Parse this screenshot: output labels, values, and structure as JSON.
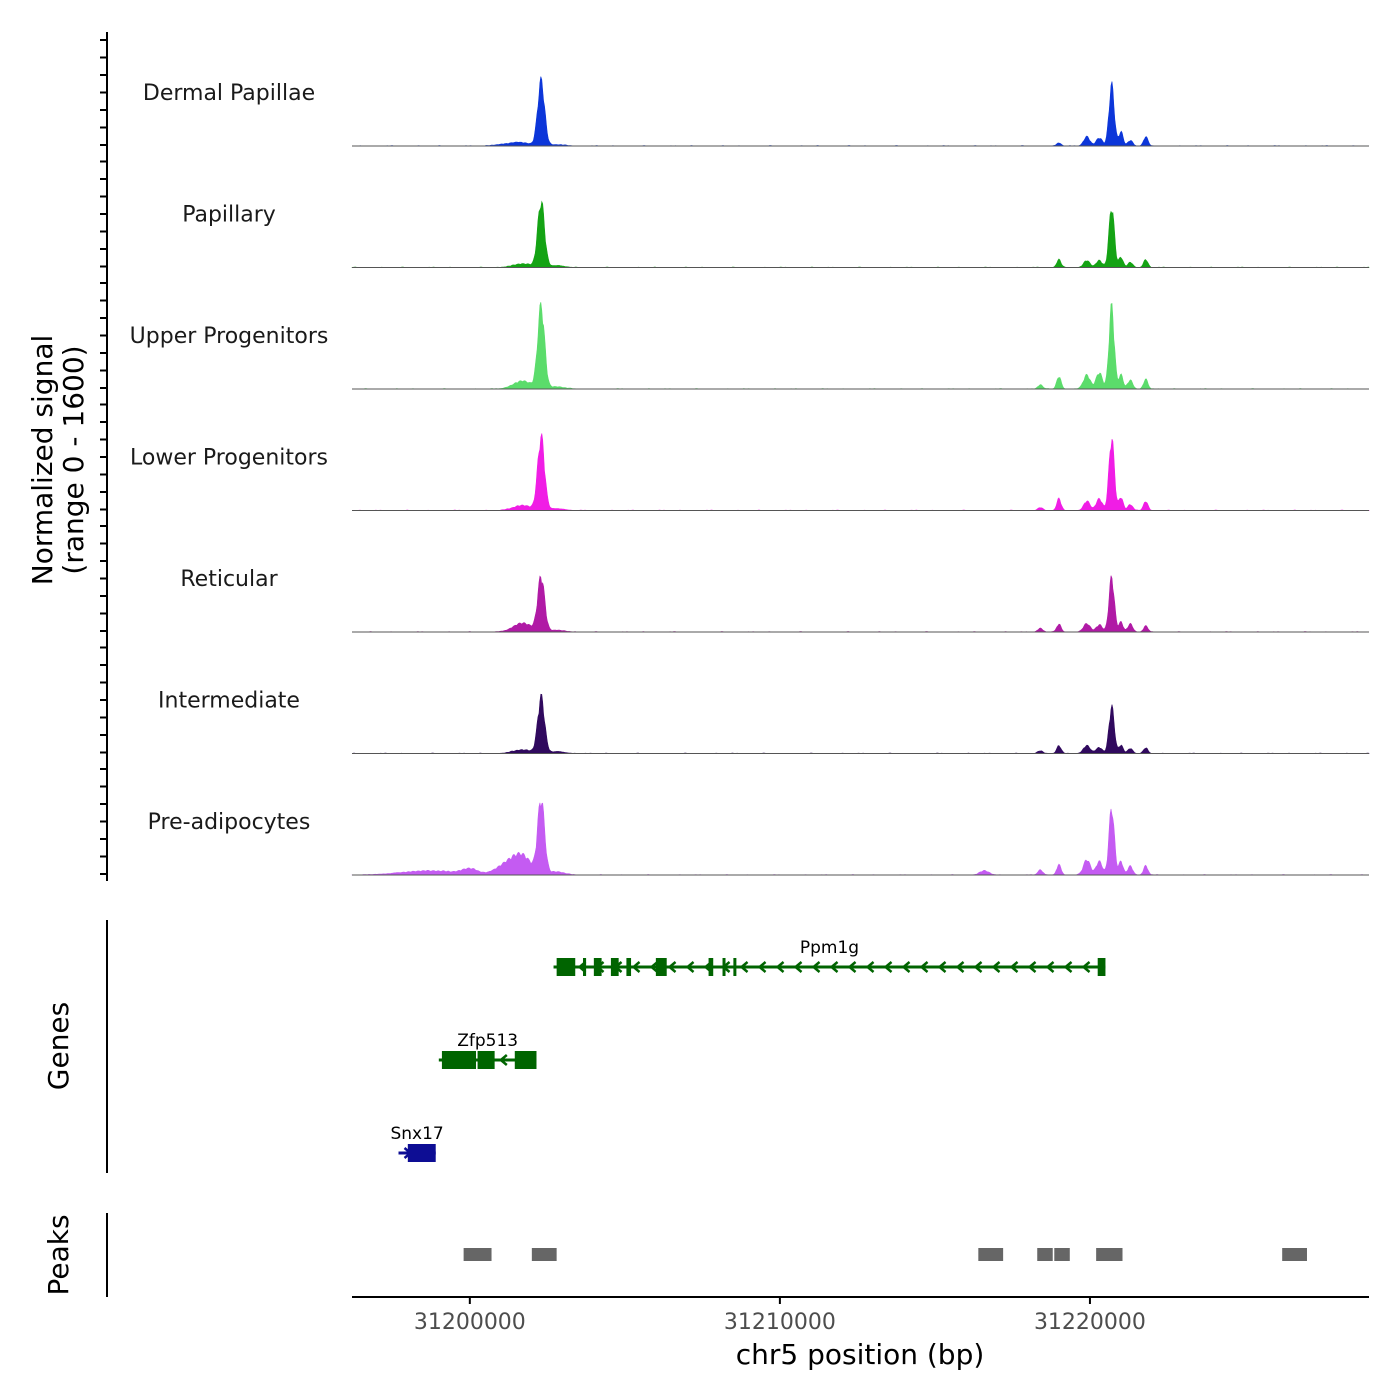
{
  "chart_data": {
    "type": "area",
    "title": "",
    "chromosome": "chr5",
    "xlabel": "chr5 position (bp)",
    "ylabel_line1": "Normalized signal",
    "ylabel_line2": "(range 0 - 1600)",
    "xlim": [
      31196200,
      31229000
    ],
    "ylim": [
      0,
      1600
    ],
    "x_ticks": [
      31200000,
      31210000,
      31220000
    ],
    "x_tick_labels": [
      "31200000",
      "31210000",
      "31220000"
    ],
    "track_titles": {
      "genes": "Genes",
      "peaks": "Peaks"
    },
    "series": [
      {
        "name": "Dermal Papillae",
        "color": "#0c36d9",
        "peaks": [
          [
            31201200,
            40,
            350
          ],
          [
            31201700,
            60,
            300
          ],
          [
            31202300,
            1380,
            110
          ],
          [
            31202800,
            30,
            250
          ],
          [
            31219000,
            70,
            70
          ],
          [
            31219900,
            200,
            100
          ],
          [
            31220300,
            170,
            100
          ],
          [
            31220700,
            1300,
            85
          ],
          [
            31221000,
            300,
            70
          ],
          [
            31221300,
            120,
            80
          ],
          [
            31221800,
            200,
            70
          ]
        ]
      },
      {
        "name": "Papillary",
        "color": "#14a314",
        "peaks": [
          [
            31201700,
            80,
            300
          ],
          [
            31202300,
            1400,
            110
          ],
          [
            31202800,
            40,
            250
          ],
          [
            31219000,
            170,
            70
          ],
          [
            31219900,
            150,
            100
          ],
          [
            31220300,
            150,
            100
          ],
          [
            31220700,
            1300,
            85
          ],
          [
            31221000,
            220,
            70
          ],
          [
            31221300,
            110,
            80
          ],
          [
            31221800,
            170,
            70
          ]
        ]
      },
      {
        "name": "Upper Progenitors",
        "color": "#5bdc6b",
        "peaks": [
          [
            31201700,
            170,
            300
          ],
          [
            31202300,
            1750,
            110
          ],
          [
            31202800,
            50,
            250
          ],
          [
            31218400,
            90,
            80
          ],
          [
            31219000,
            270,
            70
          ],
          [
            31219900,
            300,
            110
          ],
          [
            31220300,
            350,
            100
          ],
          [
            31220700,
            1750,
            85
          ],
          [
            31221000,
            300,
            70
          ],
          [
            31221300,
            190,
            80
          ],
          [
            31221800,
            210,
            70
          ]
        ]
      },
      {
        "name": "Lower Progenitors",
        "color": "#f01de5",
        "peaks": [
          [
            31201700,
            110,
            300
          ],
          [
            31202300,
            1560,
            110
          ],
          [
            31202800,
            40,
            250
          ],
          [
            31218400,
            60,
            80
          ],
          [
            31219000,
            250,
            70
          ],
          [
            31219900,
            200,
            100
          ],
          [
            31220300,
            250,
            100
          ],
          [
            31220700,
            1560,
            85
          ],
          [
            31221000,
            280,
            70
          ],
          [
            31221300,
            130,
            80
          ],
          [
            31221800,
            200,
            70
          ]
        ]
      },
      {
        "name": "Reticular",
        "color": "#b01aa5",
        "peaks": [
          [
            31201700,
            190,
            300
          ],
          [
            31202300,
            1170,
            110
          ],
          [
            31202800,
            40,
            250
          ],
          [
            31218400,
            80,
            80
          ],
          [
            31219000,
            170,
            70
          ],
          [
            31219900,
            180,
            110
          ],
          [
            31220300,
            150,
            100
          ],
          [
            31220700,
            1170,
            85
          ],
          [
            31221000,
            210,
            70
          ],
          [
            31221300,
            170,
            80
          ],
          [
            31221800,
            130,
            70
          ]
        ]
      },
      {
        "name": "Intermediate",
        "color": "#30095e",
        "peaks": [
          [
            31201700,
            80,
            300
          ],
          [
            31202300,
            1190,
            110
          ],
          [
            31202800,
            40,
            250
          ],
          [
            31218400,
            60,
            80
          ],
          [
            31219000,
            170,
            70
          ],
          [
            31219900,
            170,
            110
          ],
          [
            31220300,
            130,
            100
          ],
          [
            31220700,
            1000,
            85
          ],
          [
            31221000,
            180,
            70
          ],
          [
            31221300,
            110,
            80
          ],
          [
            31221800,
            120,
            70
          ]
        ]
      },
      {
        "name": "Pre-adipocytes",
        "color": "#c45bf2",
        "peaks": [
          [
            31198700,
            90,
            900
          ],
          [
            31200000,
            110,
            250
          ],
          [
            31201200,
            220,
            350
          ],
          [
            31201700,
            360,
            300
          ],
          [
            31202300,
            1580,
            110
          ],
          [
            31202800,
            70,
            250
          ],
          [
            31216600,
            90,
            150
          ],
          [
            31218400,
            110,
            80
          ],
          [
            31219000,
            220,
            70
          ],
          [
            31219900,
            330,
            110
          ],
          [
            31220300,
            290,
            100
          ],
          [
            31220700,
            1440,
            85
          ],
          [
            31221000,
            290,
            70
          ],
          [
            31221300,
            190,
            80
          ],
          [
            31221800,
            200,
            70
          ]
        ]
      }
    ],
    "genes": [
      {
        "name": "Snx17",
        "color": "#0d0d94",
        "strand": "+",
        "start": 31197700,
        "end": 31198900,
        "exons": [
          [
            31198000,
            31198900
          ]
        ],
        "row": 2
      },
      {
        "name": "Zfp513",
        "color": "#006400",
        "strand": "-",
        "start": 31199000,
        "end": 31202150,
        "exons": [
          [
            31199100,
            31200200
          ],
          [
            31200250,
            31200800
          ],
          [
            31201450,
            31202150
          ]
        ],
        "row": 1
      },
      {
        "name": "Ppm1g",
        "color": "#006400",
        "strand": "-",
        "start": 31202700,
        "end": 31220500,
        "exons": [
          [
            31202800,
            31203400
          ],
          [
            31203650,
            31203750
          ],
          [
            31204000,
            31204250
          ],
          [
            31204550,
            31204800
          ],
          [
            31205050,
            31205200
          ],
          [
            31206000,
            31206350
          ],
          [
            31207700,
            31207850
          ],
          [
            31208150,
            31208200
          ],
          [
            31208500,
            31208550
          ],
          [
            31220250,
            31220500
          ]
        ],
        "row": 0
      }
    ],
    "peak_regions": [
      [
        31199800,
        31200700
      ],
      [
        31202000,
        31202800
      ],
      [
        31216400,
        31217200
      ],
      [
        31218300,
        31218800
      ],
      [
        31218850,
        31219350
      ],
      [
        31220200,
        31221050
      ],
      [
        31226200,
        31227000
      ]
    ],
    "peaks_color": "#666666"
  }
}
